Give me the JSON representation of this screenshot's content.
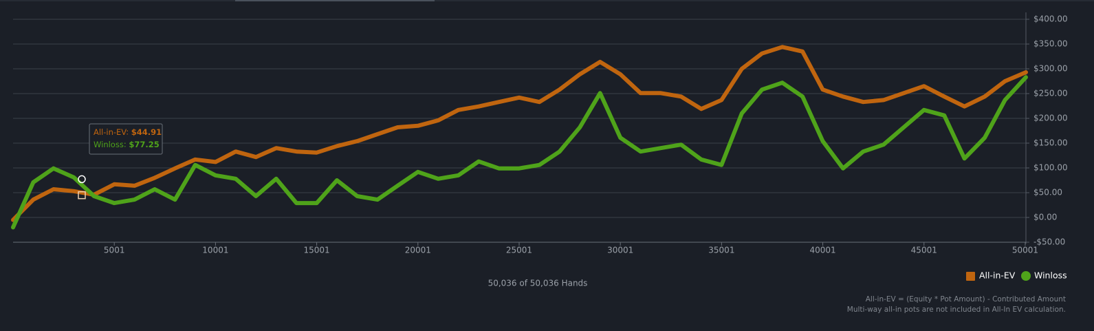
{
  "chart_data": {
    "type": "line",
    "x": [
      1,
      1000,
      2000,
      3000,
      4000,
      5000,
      6000,
      7000,
      8000,
      9000,
      10000,
      11000,
      12000,
      13000,
      14000,
      15000,
      16000,
      17000,
      18000,
      19000,
      20000,
      21000,
      22000,
      23000,
      24000,
      25000,
      26000,
      27000,
      28000,
      29000,
      30000,
      31000,
      32000,
      33000,
      34000,
      35000,
      36000,
      37000,
      38000,
      39000,
      40000,
      41000,
      42000,
      43000,
      44000,
      45000,
      46000,
      47000,
      48000,
      49000,
      50036
    ],
    "series": [
      {
        "name": "All-in-EV",
        "color": "#c0650f",
        "marker": "square",
        "values": [
          -5,
          36,
          57,
          53,
          46,
          67,
          64,
          80,
          99,
          117,
          112,
          133,
          122,
          140,
          133,
          131,
          144,
          154,
          168,
          182,
          185,
          196,
          217,
          224,
          233,
          242,
          233,
          258,
          289,
          314,
          289,
          251,
          251,
          244,
          219,
          237,
          300,
          331,
          344,
          335,
          258,
          244,
          233,
          237,
          251,
          265,
          244,
          224,
          244,
          275,
          293
        ]
      },
      {
        "name": "Winloss",
        "color": "#4fa31a",
        "marker": "circle",
        "values": [
          -20,
          71,
          99,
          81,
          43,
          29,
          36,
          57,
          36,
          106,
          85,
          78,
          43,
          78,
          29,
          29,
          75,
          43,
          36,
          64,
          92,
          78,
          85,
          113,
          99,
          99,
          106,
          133,
          182,
          251,
          161,
          133,
          140,
          147,
          117,
          106,
          210,
          258,
          272,
          244,
          154,
          99,
          133,
          147,
          182,
          217,
          206,
          119,
          161,
          237,
          283
        ]
      }
    ],
    "xlim": [
      1,
      50036
    ],
    "xticks": [
      5001,
      10001,
      15001,
      20001,
      25001,
      30001,
      35001,
      40001,
      45001,
      50001
    ],
    "ylim": [
      -50,
      400
    ],
    "yticks": [
      {
        "value": -50,
        "label": "-$50.00"
      },
      {
        "value": 0,
        "label": "$0.00"
      },
      {
        "value": 50,
        "label": "$50.00"
      },
      {
        "value": 100,
        "label": "$100.00"
      },
      {
        "value": 150,
        "label": "$150.00"
      },
      {
        "value": 200,
        "label": "$200.00"
      },
      {
        "value": 250,
        "label": "$250.00"
      },
      {
        "value": 300,
        "label": "$300.00"
      },
      {
        "value": 350,
        "label": "$350.00"
      },
      {
        "value": 400,
        "label": "$400.00"
      }
    ],
    "grid": true,
    "legend": "bottom-right",
    "tooltip": {
      "items": [
        {
          "name": "All-in-EV",
          "value": 44.91,
          "value_label": "$44.91"
        },
        {
          "name": "Winloss",
          "value": 77.25,
          "value_label": "$77.25"
        }
      ]
    },
    "hands_label": "50,036 of 50,036 Hands",
    "footnotes": [
      "All-in-EV = (Equity * Pot Amount) - Contributed Amount",
      "Multi-way all-in pots are not included in All-In EV calculation."
    ]
  }
}
